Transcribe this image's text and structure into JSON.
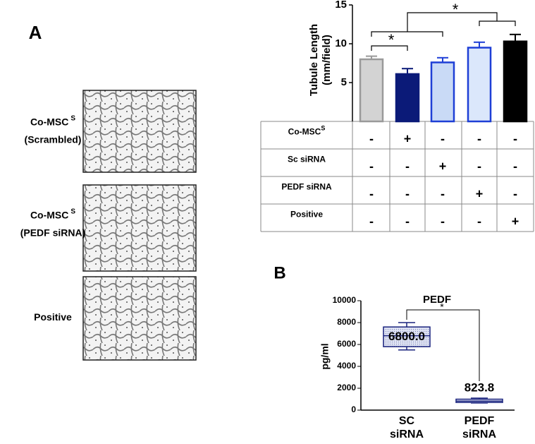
{
  "panel_labels": [
    "A",
    "B"
  ],
  "image_labels": [
    {
      "lines": [
        "Co-MSC",
        "(Scrambled)"
      ],
      "sup": "S"
    },
    {
      "lines": [
        "Co-MSC",
        "(PEDF siRNA)"
      ],
      "sup": "S"
    },
    {
      "lines": [
        "Positive"
      ]
    }
  ],
  "table": {
    "rows": [
      {
        "label": "Co-MSC",
        "sup": "S",
        "cells": [
          "-",
          "+",
          "-",
          "-",
          "-"
        ]
      },
      {
        "label": "Sc siRNA",
        "cells": [
          "-",
          "-",
          "+",
          "-",
          "-"
        ]
      },
      {
        "label": "PEDF siRNA",
        "cells": [
          "-",
          "-",
          "-",
          "+",
          "-"
        ]
      },
      {
        "label": "Positive",
        "cells": [
          "-",
          "-",
          "-",
          "-",
          "+"
        ]
      }
    ]
  },
  "chart_data": [
    {
      "type": "bar",
      "ylabel": [
        "Tubule Length",
        "(mm/field)"
      ],
      "values": [
        8.0,
        6.1,
        7.6,
        9.5,
        10.3
      ],
      "errors": [
        0.4,
        0.7,
        0.6,
        0.7,
        0.9
      ],
      "colors": [
        "#d3d3d3",
        "#0b1a78",
        "#c9daf6",
        "#dbe7fb",
        "#000000"
      ],
      "edge_colors": [
        "#9a9a9a",
        "#0b1a78",
        "#1e3fd6",
        "#1e3fd6",
        "#000000"
      ],
      "ylim": [
        0,
        15
      ],
      "yticks": [
        5,
        10,
        15
      ],
      "annotations": [
        "*",
        "*"
      ]
    },
    {
      "type": "box",
      "title": "PEDF",
      "ylabel": "pg/ml",
      "categories": [
        [
          "SC",
          "siRNA"
        ],
        [
          "PEDF",
          "siRNA"
        ]
      ],
      "min": [
        5500,
        650
      ],
      "q1": [
        5800,
        700
      ],
      "values": [
        6800,
        823.8
      ],
      "q3": [
        7600,
        1000
      ],
      "max": [
        8000,
        1100
      ],
      "value_labels": [
        "6800.0",
        "823.8"
      ],
      "color": "#1a237e",
      "ylim": [
        0,
        10000
      ],
      "yticks": [
        0,
        2000,
        4000,
        6000,
        8000,
        10000
      ],
      "annotations": [
        "*"
      ]
    }
  ]
}
